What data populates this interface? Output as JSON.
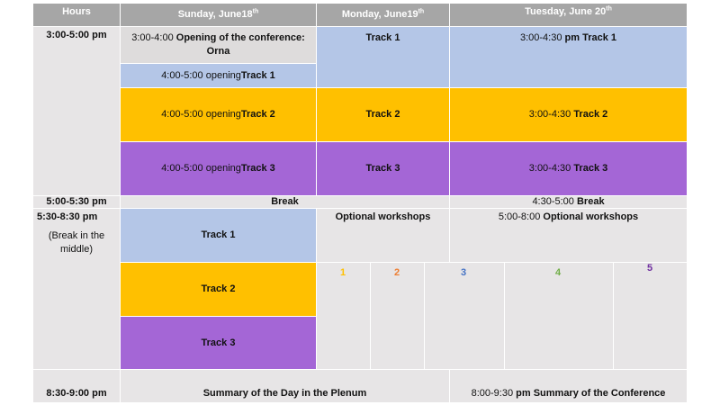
{
  "header": {
    "hours": "Hours",
    "sunday": "Sunday, June18",
    "sunday_sup": "th",
    "monday": "Monday, June19",
    "monday_sup": "th",
    "tuesday": "Tuesday, June 20",
    "tuesday_sup": "th"
  },
  "hours": {
    "slot1": "3:00-5:00 pm",
    "slot2": "5:00-5:30 pm",
    "slot3": "5:30-8:30 pm",
    "slot3_note": "(Break in the middle)",
    "slot4": "8:30-9:00 pm"
  },
  "sunday": {
    "opening_time": "3:00-4:00 ",
    "opening_title": "Opening of the conference: Orna",
    "track1_prefix": "4:00-5:00 opening",
    "track1": "Track 1",
    "track2_prefix": "4:00-5:00 opening",
    "track2": "Track 2",
    "track3_prefix": "4:00-5:00 opening",
    "track3": "Track 3",
    "eve_track1": "Track 1",
    "eve_track2": "Track 2",
    "eve_track3": "Track 3"
  },
  "monday": {
    "track1": "Track 1",
    "track2": "Track 2",
    "track3": "Track 3",
    "workshops": "Optional workshops"
  },
  "tuesday": {
    "track1_time": "3:00-4:30 ",
    "track1": "pm Track 1",
    "track2_time": "3:00-4:30 ",
    "track2": "Track 2",
    "track3_time": "3:00-4:30 ",
    "track3": "Track 3",
    "break_time": "4:30-5:00 ",
    "break": "Break",
    "workshops_time": "5:00-8:00 ",
    "workshops": "Optional workshops",
    "summary_time": "8:00-9:30 ",
    "summary": "pm Summary of the Conference"
  },
  "break": "Break",
  "summary_day": "Summary of the Day in the Plenum",
  "workshop_numbers": [
    {
      "label": "1",
      "color": "#ffc000"
    },
    {
      "label": "2",
      "color": "#ed7d31"
    },
    {
      "label": "3",
      "color": "#4472c4"
    },
    {
      "label": "4",
      "color": "#70ad47"
    },
    {
      "label": "5",
      "color": "#7030a0"
    }
  ]
}
